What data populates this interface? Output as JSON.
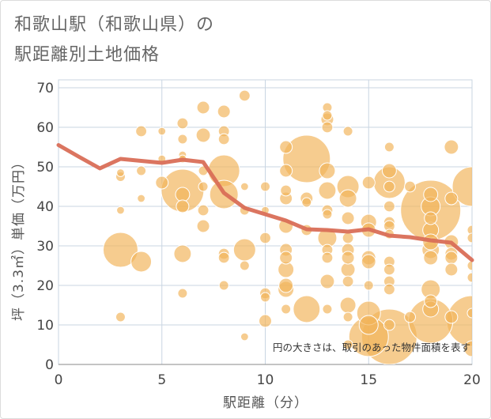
{
  "chart_data": {
    "type": "scatter",
    "title": [
      "和歌山駅（和歌山県）の",
      "駅距離別土地価格"
    ],
    "xlabel": "駅距離（分）",
    "ylabel": "坪（3.3㎡）単価（万円）",
    "xlim": [
      0,
      20
    ],
    "ylim": [
      0,
      72
    ],
    "xticks": [
      0,
      5,
      10,
      15,
      20
    ],
    "yticks": [
      0,
      10,
      20,
      30,
      40,
      50,
      60,
      70
    ],
    "grid": true,
    "annotation": "円の大きさは、取引のあった物件面積を表す",
    "series": [
      {
        "type": "bubble",
        "points": [
          [
            3,
            29,
            121
          ],
          [
            3,
            47.5,
            9
          ],
          [
            3,
            48.5,
            6
          ],
          [
            3,
            39,
            6
          ],
          [
            3,
            12,
            9
          ],
          [
            4,
            26,
            42
          ],
          [
            4,
            59,
            12
          ],
          [
            4,
            49,
            9
          ],
          [
            4,
            42,
            6
          ],
          [
            5,
            46,
            16
          ],
          [
            5,
            52,
            6
          ],
          [
            5,
            59,
            6
          ],
          [
            6,
            44,
            182
          ],
          [
            6,
            28,
            30
          ],
          [
            6,
            61,
            12
          ],
          [
            6,
            57,
            9
          ],
          [
            6,
            53,
            6
          ],
          [
            6,
            52,
            6
          ],
          [
            6,
            18,
            9
          ],
          [
            6,
            40,
            16
          ],
          [
            6,
            43,
            20
          ],
          [
            7,
            65,
            16
          ],
          [
            7,
            58,
            20
          ],
          [
            7,
            35,
            16
          ],
          [
            7,
            39,
            12
          ],
          [
            7,
            49,
            9
          ],
          [
            7,
            45,
            9
          ],
          [
            8,
            49,
            100
          ],
          [
            8,
            43,
            81
          ],
          [
            8,
            64,
            16
          ],
          [
            8,
            59,
            12
          ],
          [
            8,
            57,
            12
          ],
          [
            8,
            28,
            12
          ],
          [
            8,
            27,
            12
          ],
          [
            8,
            20,
            9
          ],
          [
            9,
            29,
            49
          ],
          [
            9,
            68,
            12
          ],
          [
            9,
            45,
            6
          ],
          [
            9,
            39,
            9
          ],
          [
            9,
            25,
            9
          ],
          [
            9,
            7,
            6
          ],
          [
            10,
            32,
            12
          ],
          [
            10,
            45,
            9
          ],
          [
            10,
            18,
            12
          ],
          [
            10,
            17,
            9
          ],
          [
            10,
            11,
            16
          ],
          [
            10,
            39,
            6
          ],
          [
            11,
            55,
            16
          ],
          [
            11,
            49,
            16
          ],
          [
            11,
            44,
            12
          ],
          [
            11,
            42,
            16
          ],
          [
            11,
            35,
            20
          ],
          [
            11,
            29,
            16
          ],
          [
            11,
            27,
            16
          ],
          [
            11,
            24,
            25
          ],
          [
            11,
            20,
            20
          ],
          [
            11,
            19,
            25
          ],
          [
            11,
            14,
            9
          ],
          [
            12,
            52,
            225
          ],
          [
            12,
            14,
            72
          ],
          [
            12,
            42,
            16
          ],
          [
            12,
            41,
            9
          ],
          [
            12,
            34,
            12
          ],
          [
            13,
            65,
            9
          ],
          [
            13,
            63,
            9
          ],
          [
            13,
            62,
            16
          ],
          [
            13,
            60,
            12
          ],
          [
            13,
            49,
            25
          ],
          [
            13,
            44,
            30
          ],
          [
            13,
            39,
            12
          ],
          [
            13,
            38,
            9
          ],
          [
            13,
            32,
            36
          ],
          [
            13,
            29,
            12
          ],
          [
            13,
            27,
            12
          ],
          [
            13,
            21,
            20
          ],
          [
            13,
            14,
            9
          ],
          [
            14,
            59,
            9
          ],
          [
            14,
            45,
            49
          ],
          [
            14,
            42,
            30
          ],
          [
            14,
            37,
            16
          ],
          [
            14,
            32,
            12
          ],
          [
            14,
            29,
            16
          ],
          [
            14,
            27,
            16
          ],
          [
            14,
            24,
            20
          ],
          [
            14,
            21,
            12
          ],
          [
            14,
            15,
            25
          ],
          [
            14,
            12,
            9
          ],
          [
            14,
            5,
            9
          ],
          [
            15,
            46,
            16
          ],
          [
            15,
            36,
            25
          ],
          [
            15,
            34,
            20
          ],
          [
            15,
            27,
            20
          ],
          [
            15,
            26,
            20
          ],
          [
            15,
            20,
            9
          ],
          [
            15,
            13,
            56
          ],
          [
            15,
            10,
            36
          ],
          [
            15,
            7,
            156
          ],
          [
            16,
            46,
            100
          ],
          [
            16,
            7,
            306
          ],
          [
            16,
            55,
            9
          ],
          [
            16,
            49,
            20
          ],
          [
            16,
            45,
            12
          ],
          [
            16,
            40,
            12
          ],
          [
            16,
            36,
            12
          ],
          [
            16,
            35,
            12
          ],
          [
            16,
            33,
            9
          ],
          [
            16,
            26,
            12
          ],
          [
            16,
            24,
            12
          ],
          [
            16,
            21,
            12
          ],
          [
            16,
            19,
            12
          ],
          [
            16,
            10,
            12
          ],
          [
            17,
            45,
            12
          ],
          [
            17,
            12,
            12
          ],
          [
            18,
            39,
            361
          ],
          [
            18,
            11,
            196
          ],
          [
            18,
            40,
            36
          ],
          [
            18,
            43,
            20
          ],
          [
            18,
            37,
            16
          ],
          [
            18,
            34,
            25
          ],
          [
            18,
            31,
            25
          ],
          [
            18,
            29,
            30
          ],
          [
            18,
            27,
            20
          ],
          [
            18,
            19,
            36
          ],
          [
            18,
            16,
            16
          ],
          [
            18,
            14,
            25
          ],
          [
            19,
            55,
            20
          ],
          [
            19,
            42,
            16
          ],
          [
            19,
            31,
            20
          ],
          [
            19,
            28,
            16
          ],
          [
            19,
            27,
            16
          ],
          [
            19,
            24,
            16
          ],
          [
            19,
            12,
            16
          ],
          [
            20,
            45,
            156
          ],
          [
            20,
            11,
            256
          ],
          [
            20,
            34,
            9
          ],
          [
            20,
            32,
            9
          ],
          [
            20,
            25,
            9
          ],
          [
            20,
            22,
            9
          ],
          [
            20,
            4,
            25
          ],
          [
            20,
            13,
            9
          ]
        ]
      },
      {
        "type": "line",
        "x": [
          0,
          1,
          2,
          3,
          4,
          5,
          6,
          7,
          8,
          9,
          10,
          11,
          12,
          13,
          14,
          15,
          16,
          17,
          18,
          19,
          20
        ],
        "y": [
          55.5,
          52.5,
          49.6,
          52,
          51.5,
          51,
          51.8,
          51.2,
          43.4,
          39.6,
          38,
          36.4,
          34.2,
          34,
          33.6,
          34.2,
          32.6,
          32.2,
          31.4,
          30.8,
          26.4
        ]
      }
    ]
  },
  "colors": {
    "bubble": "#f2b45a",
    "line": "#d96e57",
    "grid": "#c9d5e2",
    "frame": "#c9d5e2",
    "axis": "#8a8a8a"
  }
}
